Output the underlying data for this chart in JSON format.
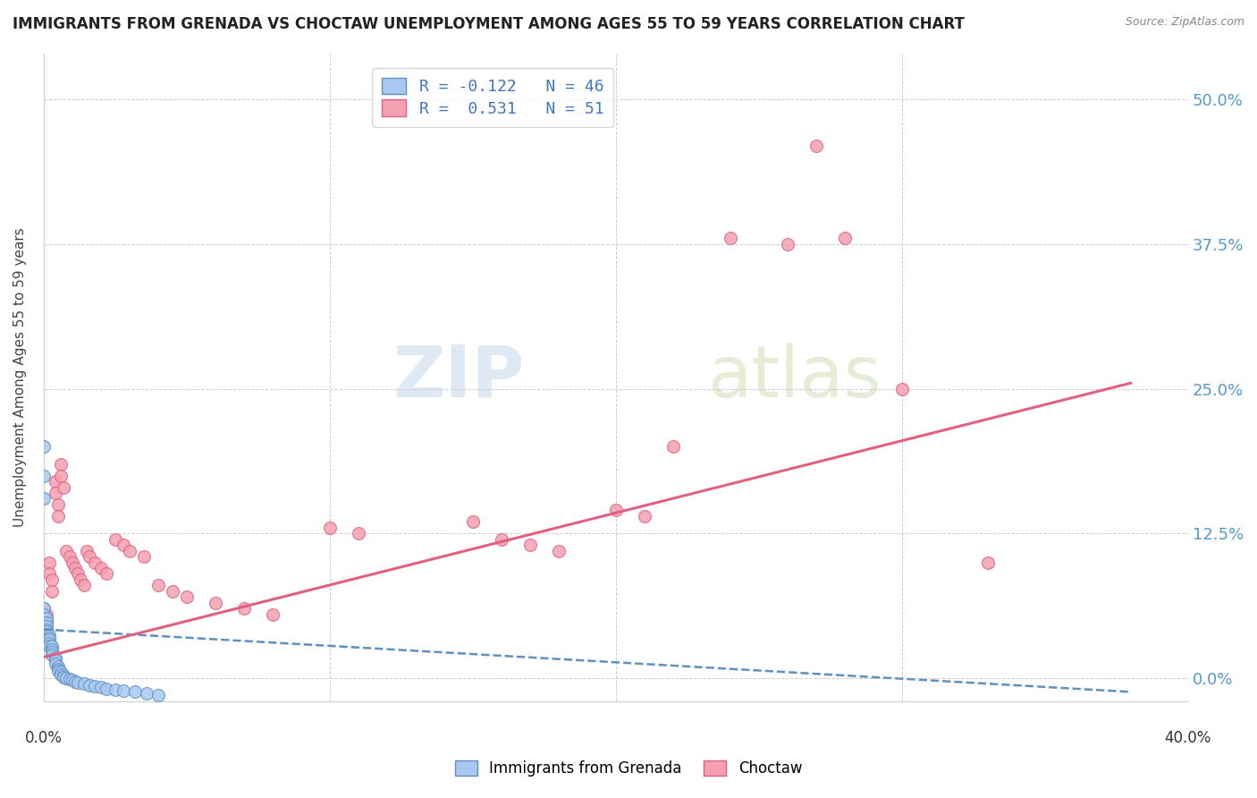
{
  "title": "IMMIGRANTS FROM GRENADA VS CHOCTAW UNEMPLOYMENT AMONG AGES 55 TO 59 YEARS CORRELATION CHART",
  "source": "Source: ZipAtlas.com",
  "ylabel": "Unemployment Among Ages 55 to 59 years",
  "ytick_labels": [
    "0.0%",
    "12.5%",
    "25.0%",
    "37.5%",
    "50.0%"
  ],
  "ytick_values": [
    0.0,
    0.125,
    0.25,
    0.375,
    0.5
  ],
  "xlim": [
    0.0,
    0.4
  ],
  "ylim": [
    -0.02,
    0.54
  ],
  "legend_labels": [
    "R = -0.122   N = 46",
    "R =  0.531   N = 51"
  ],
  "color_blue": "#a8c8f0",
  "color_pink": "#f4a0b0",
  "line_blue": "#6090c0",
  "line_pink": "#e06080",
  "watermark_zip": "ZIP",
  "watermark_atlas": "atlas",
  "blue_scatter": [
    [
      0.0,
      0.2
    ],
    [
      0.0,
      0.175
    ],
    [
      0.0,
      0.155
    ],
    [
      0.0,
      0.06
    ],
    [
      0.0,
      0.055
    ],
    [
      0.001,
      0.052
    ],
    [
      0.001,
      0.048
    ],
    [
      0.001,
      0.045
    ],
    [
      0.001,
      0.042
    ],
    [
      0.001,
      0.04
    ],
    [
      0.001,
      0.038
    ],
    [
      0.002,
      0.037
    ],
    [
      0.002,
      0.035
    ],
    [
      0.002,
      0.033
    ],
    [
      0.002,
      0.03
    ],
    [
      0.002,
      0.028
    ],
    [
      0.003,
      0.028
    ],
    [
      0.003,
      0.025
    ],
    [
      0.003,
      0.022
    ],
    [
      0.003,
      0.02
    ],
    [
      0.004,
      0.018
    ],
    [
      0.004,
      0.015
    ],
    [
      0.004,
      0.012
    ],
    [
      0.005,
      0.01
    ],
    [
      0.005,
      0.008
    ],
    [
      0.005,
      0.006
    ],
    [
      0.006,
      0.005
    ],
    [
      0.006,
      0.003
    ],
    [
      0.007,
      0.002
    ],
    [
      0.007,
      0.001
    ],
    [
      0.008,
      0.0
    ],
    [
      0.008,
      0.0
    ],
    [
      0.009,
      -0.001
    ],
    [
      0.01,
      -0.002
    ],
    [
      0.011,
      -0.003
    ],
    [
      0.012,
      -0.004
    ],
    [
      0.014,
      -0.005
    ],
    [
      0.016,
      -0.006
    ],
    [
      0.018,
      -0.007
    ],
    [
      0.02,
      -0.008
    ],
    [
      0.022,
      -0.009
    ],
    [
      0.025,
      -0.01
    ],
    [
      0.028,
      -0.011
    ],
    [
      0.032,
      -0.012
    ],
    [
      0.036,
      -0.013
    ],
    [
      0.04,
      -0.015
    ]
  ],
  "pink_scatter": [
    [
      0.0,
      0.06
    ],
    [
      0.001,
      0.055
    ],
    [
      0.001,
      0.05
    ],
    [
      0.002,
      0.1
    ],
    [
      0.002,
      0.09
    ],
    [
      0.003,
      0.085
    ],
    [
      0.003,
      0.075
    ],
    [
      0.004,
      0.17
    ],
    [
      0.004,
      0.16
    ],
    [
      0.005,
      0.15
    ],
    [
      0.005,
      0.14
    ],
    [
      0.006,
      0.185
    ],
    [
      0.006,
      0.175
    ],
    [
      0.007,
      0.165
    ],
    [
      0.008,
      0.11
    ],
    [
      0.009,
      0.105
    ],
    [
      0.01,
      0.1
    ],
    [
      0.011,
      0.095
    ],
    [
      0.012,
      0.09
    ],
    [
      0.013,
      0.085
    ],
    [
      0.014,
      0.08
    ],
    [
      0.015,
      0.11
    ],
    [
      0.016,
      0.105
    ],
    [
      0.018,
      0.1
    ],
    [
      0.02,
      0.095
    ],
    [
      0.022,
      0.09
    ],
    [
      0.025,
      0.12
    ],
    [
      0.028,
      0.115
    ],
    [
      0.03,
      0.11
    ],
    [
      0.035,
      0.105
    ],
    [
      0.04,
      0.08
    ],
    [
      0.045,
      0.075
    ],
    [
      0.05,
      0.07
    ],
    [
      0.06,
      0.065
    ],
    [
      0.07,
      0.06
    ],
    [
      0.08,
      0.055
    ],
    [
      0.1,
      0.13
    ],
    [
      0.11,
      0.125
    ],
    [
      0.15,
      0.135
    ],
    [
      0.16,
      0.12
    ],
    [
      0.17,
      0.115
    ],
    [
      0.18,
      0.11
    ],
    [
      0.2,
      0.145
    ],
    [
      0.21,
      0.14
    ],
    [
      0.22,
      0.2
    ],
    [
      0.24,
      0.38
    ],
    [
      0.26,
      0.375
    ],
    [
      0.27,
      0.46
    ],
    [
      0.28,
      0.38
    ],
    [
      0.3,
      0.25
    ],
    [
      0.33,
      0.1
    ]
  ],
  "blue_trend_x": [
    0.0,
    0.38
  ],
  "blue_trend_y": [
    0.042,
    -0.012
  ],
  "pink_trend_x": [
    0.0,
    0.38
  ],
  "pink_trend_y": [
    0.018,
    0.255
  ]
}
